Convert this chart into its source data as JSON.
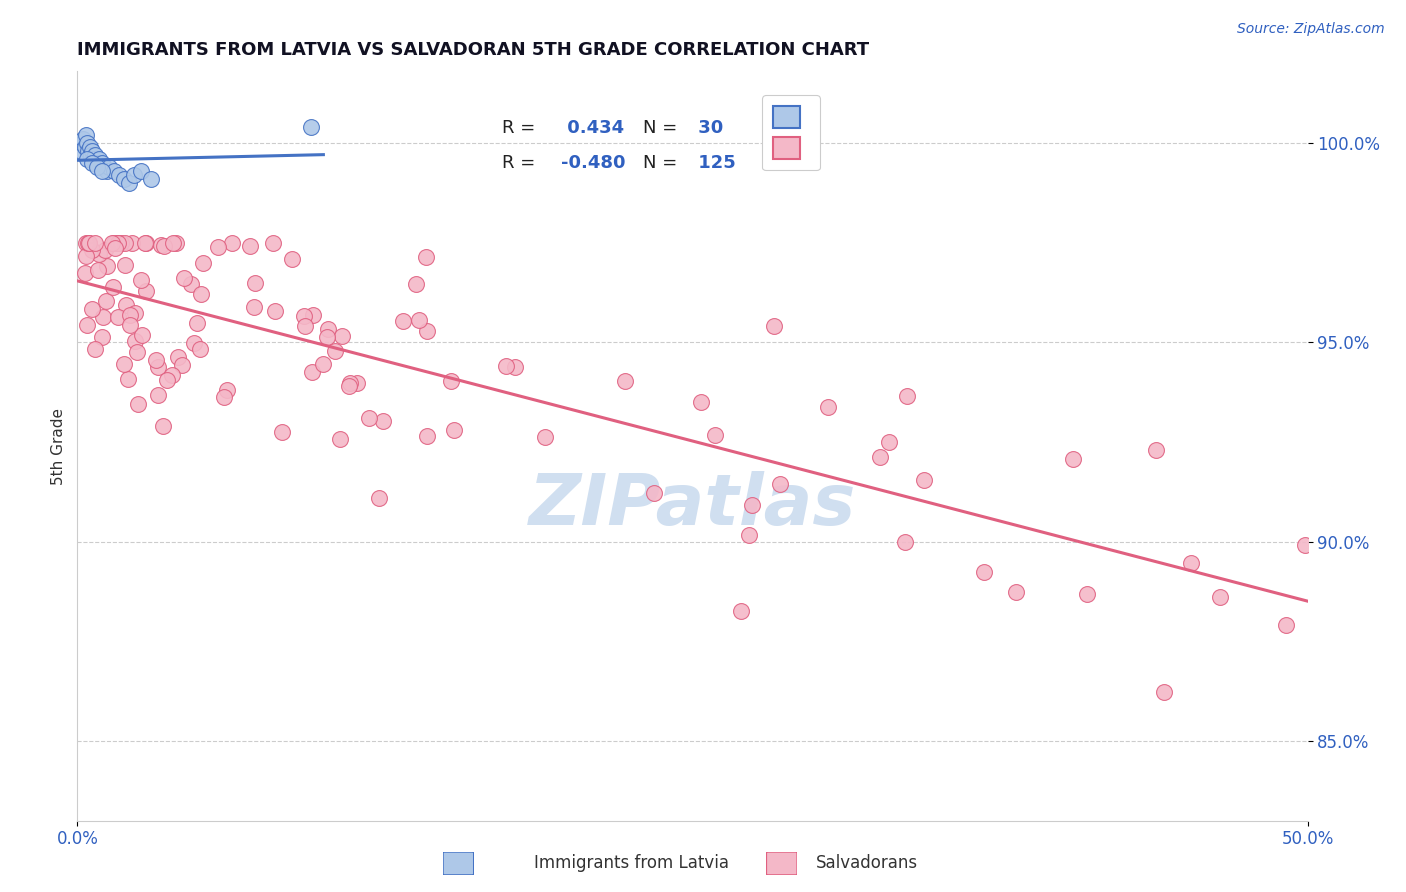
{
  "title": "IMMIGRANTS FROM LATVIA VS SALVADORAN 5TH GRADE CORRELATION CHART",
  "source": "Source: ZipAtlas.com",
  "ylabel": "5th Grade",
  "xmin": 0.0,
  "xmax": 50.0,
  "ymin": 83.0,
  "ymax": 101.8,
  "yticks": [
    85.0,
    90.0,
    95.0,
    100.0
  ],
  "ytick_labels": [
    "85.0%",
    "90.0%",
    "95.0%",
    "100.0%"
  ],
  "legend_r_latvia": "0.434",
  "legend_n_latvia": "30",
  "legend_r_salvadoran": "-0.480",
  "legend_n_salvadoran": "125",
  "latvia_fill_color": "#aec8e8",
  "latvia_edge_color": "#4472c4",
  "salvadoran_fill_color": "#f4b8c8",
  "salvadoran_edge_color": "#e06080",
  "latvia_line_color": "#4472c4",
  "salvadoran_line_color": "#e06080",
  "watermark_text": "ZIPatlas",
  "watermark_color": "#d0dff0",
  "legend_label_latvia": "Immigrants from Latvia",
  "legend_label_salvadoran": "Salvadorans",
  "title_fontsize": 13,
  "label_color": "#3060c0",
  "text_color": "#333333"
}
